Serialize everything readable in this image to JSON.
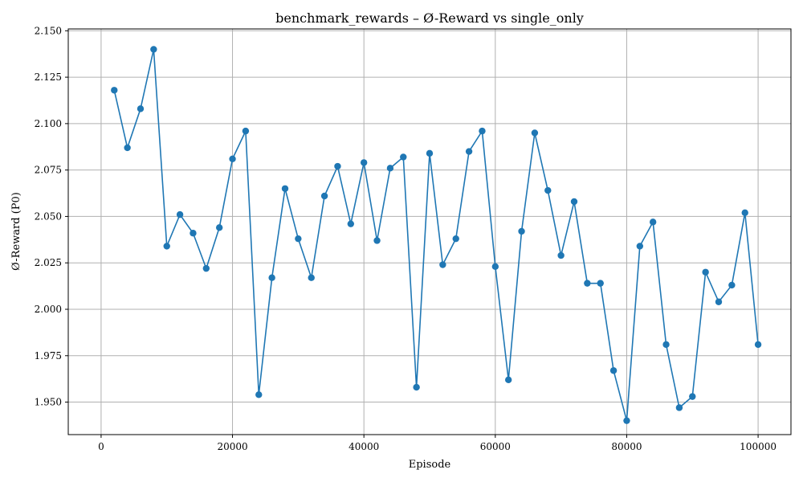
{
  "chart_data": {
    "type": "line",
    "title": "benchmark_rewards – Ø-Reward vs single_only",
    "xlabel": "Episode",
    "ylabel": "Ø-Reward (P0)",
    "xlim": [
      -5000,
      105000
    ],
    "ylim": [
      1.9325,
      2.151
    ],
    "xticks": [
      0,
      20000,
      40000,
      60000,
      80000,
      100000
    ],
    "xtick_labels": [
      "0",
      "20000",
      "40000",
      "60000",
      "80000",
      "100000"
    ],
    "yticks": [
      1.95,
      1.975,
      2.0,
      2.025,
      2.05,
      2.075,
      2.1,
      2.125,
      2.15
    ],
    "ytick_labels": [
      "1.950",
      "1.975",
      "2.000",
      "2.025",
      "2.050",
      "2.075",
      "2.100",
      "2.125",
      "2.150"
    ],
    "grid": true,
    "color": "#1f77b4",
    "x": [
      2000,
      4000,
      6000,
      8000,
      10000,
      12000,
      14000,
      16000,
      18000,
      20000,
      22000,
      24000,
      26000,
      28000,
      30000,
      32000,
      34000,
      36000,
      38000,
      40000,
      42000,
      44000,
      46000,
      48000,
      50000,
      52000,
      54000,
      56000,
      58000,
      60000,
      62000,
      64000,
      66000,
      68000,
      70000,
      72000,
      74000,
      76000,
      78000,
      80000,
      82000,
      84000,
      86000,
      88000,
      90000,
      92000,
      94000,
      96000,
      98000,
      100000
    ],
    "y": [
      2.118,
      2.087,
      2.108,
      2.14,
      2.034,
      2.051,
      2.041,
      2.022,
      2.044,
      2.081,
      2.096,
      1.954,
      2.017,
      2.065,
      2.038,
      2.017,
      2.061,
      2.077,
      2.046,
      2.079,
      2.037,
      2.076,
      2.082,
      1.958,
      2.084,
      2.024,
      2.038,
      2.085,
      2.096,
      2.023,
      1.962,
      2.042,
      2.095,
      2.064,
      2.029,
      2.058,
      2.014,
      2.014,
      1.967,
      1.94,
      2.034,
      2.047,
      1.981,
      1.947,
      1.953,
      2.02,
      2.004,
      2.013,
      2.052,
      1.981
    ]
  }
}
